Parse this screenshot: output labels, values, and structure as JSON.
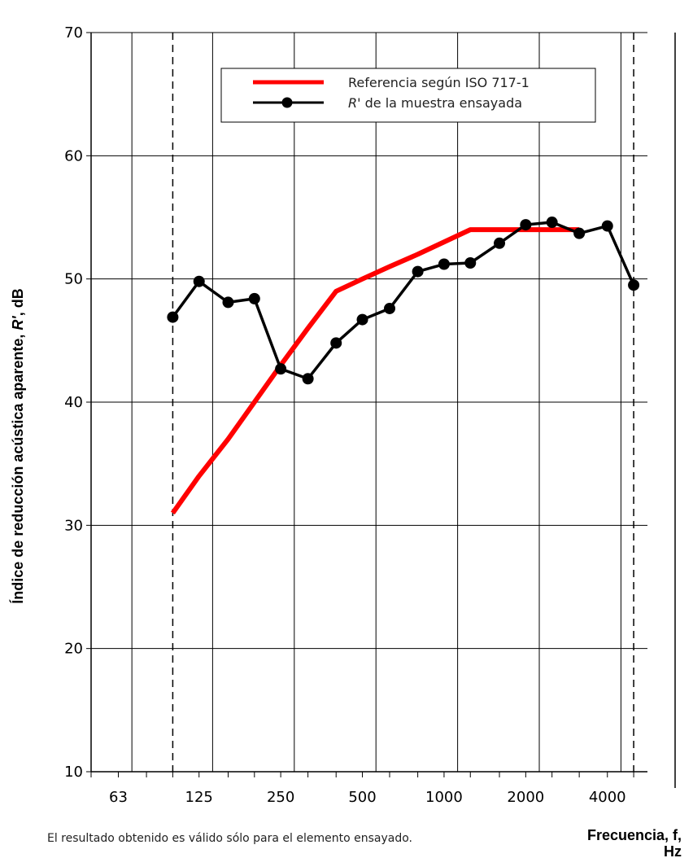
{
  "chart_data": {
    "type": "line",
    "ylabel": "Índice de reducción acústica aparente, R', dB",
    "ylabel_parts": {
      "a": "Índice de reducción acústica aparente, ",
      "b": "R'",
      "c": ", dB"
    },
    "xlabel_line1": "Frecuencia, f,",
    "xlabel_line2": "Hz",
    "ylim": [
      10,
      70
    ],
    "yticks": [
      10,
      20,
      30,
      40,
      50,
      60,
      70
    ],
    "xticks": [
      "63",
      "125",
      "250",
      "500",
      "1000",
      "2000",
      "4000"
    ],
    "grid": true,
    "legend_position": "top-right",
    "legend_ref": "Referencia según ISO 717-1",
    "legend_meas_italic": "R'",
    "legend_meas_rest": " de la muestra ensayada",
    "series": [
      {
        "name": "Referencia según ISO 717-1",
        "color": "#ff0000",
        "x": [
          100,
          125,
          160,
          200,
          250,
          315,
          400,
          500,
          630,
          800,
          1000,
          1250,
          1600,
          2000,
          2500,
          3150
        ],
        "values": [
          31,
          34,
          37,
          40,
          43,
          46,
          49,
          50,
          51,
          52,
          53,
          54,
          54,
          54,
          54,
          54
        ]
      },
      {
        "name": "R' de la muestra ensayada",
        "color": "#000000",
        "x": [
          100,
          125,
          160,
          200,
          250,
          315,
          400,
          500,
          630,
          800,
          1000,
          1250,
          1600,
          2000,
          2500,
          3150,
          4000,
          5000
        ],
        "values": [
          46.9,
          49.8,
          48.1,
          48.4,
          42.7,
          41.9,
          44.8,
          46.7,
          47.6,
          50.6,
          51.2,
          51.3,
          52.9,
          54.4,
          54.6,
          53.7,
          54.3,
          49.5
        ]
      }
    ]
  },
  "footnote": "El resultado obtenido es válido sólo para el elemento ensayado."
}
